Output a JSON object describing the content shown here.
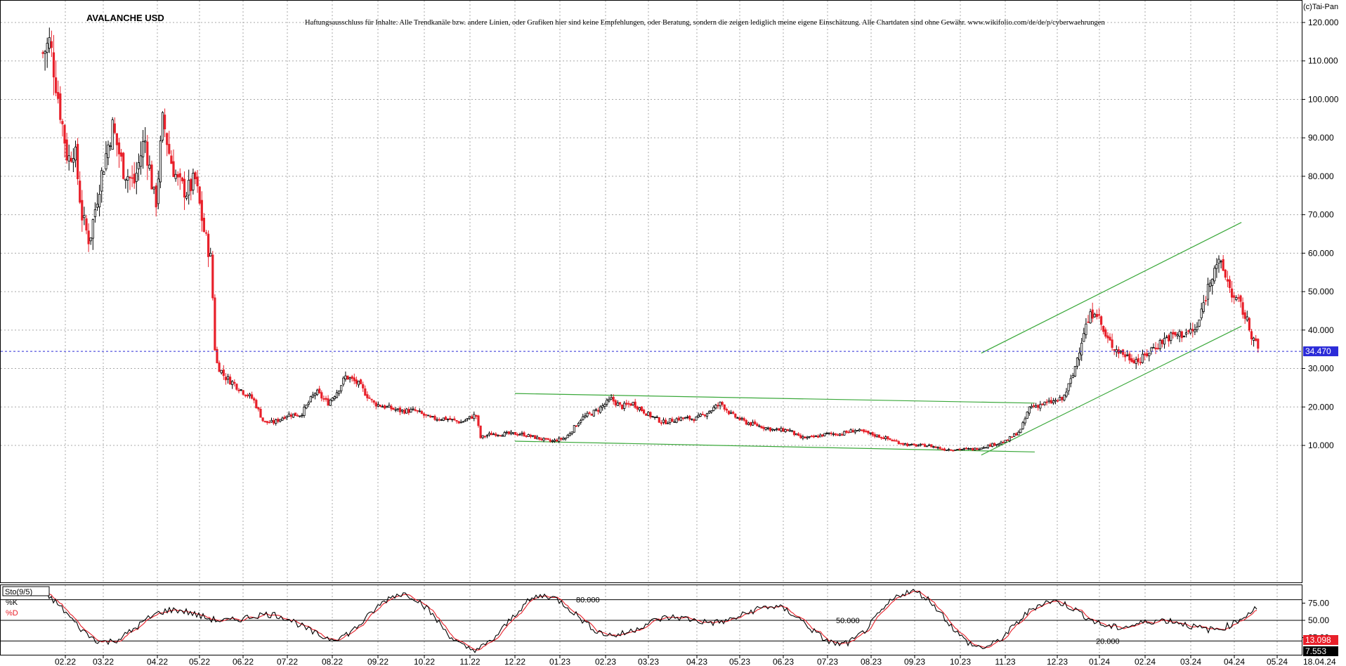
{
  "chart_data": [
    {
      "type": "candlestick",
      "title": "AVALANCHE USD",
      "subtitle": "Haftungsausschluss für Inhalte: Alle Trendkanäle bzw. andere Linien, oder Grafiken hier sind keine Empfehlungen, oder Beratung, sondern die zeigen lediglich meine eigene Einschätzung. Alle Chartdaten sind ohne Gewähr. www.wikifolio.com/de/de/p/cyberwaehrungen",
      "copyright": "(c)Tai-Pan",
      "x_ticks": [
        "02.22",
        "03.22",
        "04.22",
        "05.22",
        "06.22",
        "07.22",
        "08.22",
        "09.22",
        "10.22",
        "11.22",
        "12.22",
        "01.23",
        "02.23",
        "03.23",
        "04.23",
        "05.23",
        "06.23",
        "07.23",
        "08.23",
        "09.23",
        "10.23",
        "11.23",
        "12.23",
        "01.24",
        "02.24",
        "03.24",
        "04.24",
        "05.24"
      ],
      "last_date_label": "18.04.24",
      "y_ticks": [
        "10.000",
        "20.000",
        "30.000",
        "40.000",
        "50.000",
        "60.000",
        "70.000",
        "80.000",
        "90.000",
        "100.000",
        "110.000",
        "120.000"
      ],
      "ylim": [
        1,
        124
      ],
      "grid": true,
      "last_price": 34.47,
      "last_price_label": "34.470",
      "up_color": "#000000",
      "down_color": "#e8202a",
      "trendline_color": "#3aa83a",
      "price_line_color": "#2b2bd8",
      "price_path": [
        [
          "2022-01-15",
          112
        ],
        [
          "2022-01-20",
          115
        ],
        [
          "2022-01-27",
          98
        ],
        [
          "2022-02-03",
          84
        ],
        [
          "2022-02-08",
          88
        ],
        [
          "2022-02-14",
          70
        ],
        [
          "2022-02-20",
          63
        ],
        [
          "2022-02-28",
          78
        ],
        [
          "2022-03-06",
          93
        ],
        [
          "2022-03-12",
          82
        ],
        [
          "2022-03-18",
          78
        ],
        [
          "2022-03-24",
          90
        ],
        [
          "2022-03-30",
          72
        ],
        [
          "2022-04-05",
          95
        ],
        [
          "2022-04-10",
          85
        ],
        [
          "2022-04-16",
          78
        ],
        [
          "2022-04-22",
          76
        ],
        [
          "2022-04-28",
          79
        ],
        [
          "2022-05-04",
          66
        ],
        [
          "2022-05-09",
          58
        ],
        [
          "2022-05-12",
          32
        ],
        [
          "2022-05-18",
          28
        ],
        [
          "2022-05-25",
          26
        ],
        [
          "2022-06-01",
          24
        ],
        [
          "2022-06-08",
          22
        ],
        [
          "2022-06-15",
          16
        ],
        [
          "2022-06-22",
          16
        ],
        [
          "2022-07-01",
          18
        ],
        [
          "2022-07-10",
          18
        ],
        [
          "2022-07-20",
          24
        ],
        [
          "2022-07-28",
          21
        ],
        [
          "2022-08-04",
          24
        ],
        [
          "2022-08-10",
          28
        ],
        [
          "2022-08-18",
          26
        ],
        [
          "2022-08-28",
          21
        ],
        [
          "2022-09-06",
          20
        ],
        [
          "2022-09-15",
          19
        ],
        [
          "2022-09-25",
          19
        ],
        [
          "2022-10-05",
          17
        ],
        [
          "2022-10-15",
          17
        ],
        [
          "2022-10-25",
          16
        ],
        [
          "2022-11-05",
          18
        ],
        [
          "2022-11-08",
          12
        ],
        [
          "2022-11-15",
          13
        ],
        [
          "2022-11-25",
          13
        ],
        [
          "2022-12-05",
          13
        ],
        [
          "2022-12-15",
          12
        ],
        [
          "2022-12-25",
          11
        ],
        [
          "2023-01-05",
          12
        ],
        [
          "2023-01-15",
          17
        ],
        [
          "2023-01-25",
          19
        ],
        [
          "2023-02-05",
          22
        ],
        [
          "2023-02-12",
          20
        ],
        [
          "2023-02-20",
          21
        ],
        [
          "2023-03-01",
          18
        ],
        [
          "2023-03-10",
          16
        ],
        [
          "2023-03-20",
          17
        ],
        [
          "2023-04-01",
          17
        ],
        [
          "2023-04-10",
          19
        ],
        [
          "2023-04-18",
          21
        ],
        [
          "2023-04-25",
          18
        ],
        [
          "2023-05-05",
          16
        ],
        [
          "2023-05-15",
          15
        ],
        [
          "2023-05-25",
          14
        ],
        [
          "2023-06-05",
          14
        ],
        [
          "2023-06-12",
          12
        ],
        [
          "2023-06-20",
          12
        ],
        [
          "2023-07-01",
          13
        ],
        [
          "2023-07-10",
          13
        ],
        [
          "2023-07-20",
          14
        ],
        [
          "2023-07-30",
          13
        ],
        [
          "2023-08-10",
          12
        ],
        [
          "2023-08-18",
          11
        ],
        [
          "2023-08-28",
          10
        ],
        [
          "2023-09-10",
          10
        ],
        [
          "2023-09-20",
          9
        ],
        [
          "2023-10-01",
          9
        ],
        [
          "2023-10-10",
          9
        ],
        [
          "2023-10-20",
          10
        ],
        [
          "2023-11-01",
          11
        ],
        [
          "2023-11-10",
          14
        ],
        [
          "2023-11-15",
          20
        ],
        [
          "2023-11-25",
          21
        ],
        [
          "2023-12-05",
          22
        ],
        [
          "2023-12-12",
          28
        ],
        [
          "2023-12-20",
          40
        ],
        [
          "2023-12-28",
          46
        ],
        [
          "2024-01-05",
          38
        ],
        [
          "2024-01-12",
          35
        ],
        [
          "2024-01-20",
          33
        ],
        [
          "2024-01-28",
          32
        ],
        [
          "2024-02-05",
          35
        ],
        [
          "2024-02-15",
          38
        ],
        [
          "2024-02-25",
          39
        ],
        [
          "2024-03-05",
          40
        ],
        [
          "2024-03-12",
          50
        ],
        [
          "2024-03-18",
          58
        ],
        [
          "2024-03-24",
          55
        ],
        [
          "2024-04-01",
          48
        ],
        [
          "2024-04-06",
          46
        ],
        [
          "2024-04-12",
          40
        ],
        [
          "2024-04-18",
          34.47
        ]
      ],
      "trendlines": [
        {
          "from": [
            "2022-12-01",
            23.5
          ],
          "to": [
            "2023-11-18",
            21
          ]
        },
        {
          "from": [
            "2022-12-01",
            11.1
          ],
          "to": [
            "2023-11-18",
            8.3
          ]
        },
        {
          "from": [
            "2023-10-15",
            34
          ],
          "to": [
            "2024-04-06",
            68
          ]
        },
        {
          "from": [
            "2023-10-15",
            7.5
          ],
          "to": [
            "2024-04-06",
            41
          ]
        }
      ]
    },
    {
      "type": "line",
      "title": "Sto(9/5)",
      "series": [
        {
          "name": "%K",
          "color": "#000000"
        },
        {
          "name": "%D",
          "color": "#e8202a"
        }
      ],
      "ylim": [
        0,
        100
      ],
      "y_ticks": [
        "75.00",
        "50.00",
        "25.00"
      ],
      "levels": [
        {
          "value": 80,
          "label": "80.000"
        },
        {
          "value": 50,
          "label": "50.000"
        },
        {
          "value": 20,
          "label": "20.000"
        }
      ],
      "last_values": [
        {
          "label": "13.098",
          "color": "#e8202a"
        },
        {
          "label": "7.553",
          "color": "#000000"
        }
      ]
    }
  ]
}
